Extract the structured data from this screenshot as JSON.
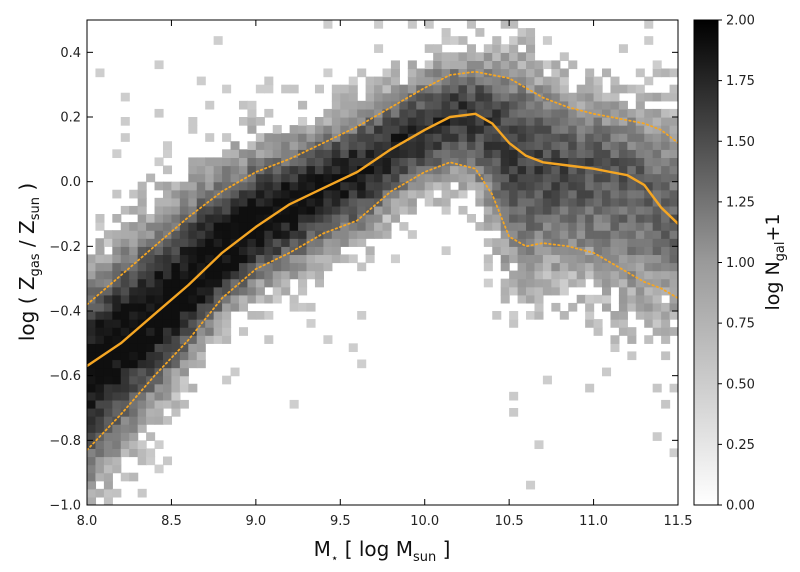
{
  "chart_data": {
    "type": "heatmap",
    "title": "",
    "xlabel": {
      "base": "M",
      "sup": "⋆",
      "rest": " [ log M",
      "sub": "sun",
      "end": " ]"
    },
    "ylabel": {
      "prefix": "log ( Z",
      "sub1": "gas",
      "mid": " / Z",
      "sub2": "sun",
      "end": " )"
    },
    "colorbar_label": {
      "prefix": "log N",
      "sub": "gal",
      "suffix": "+1"
    },
    "xlim": [
      8.0,
      11.5
    ],
    "ylim": [
      -1.0,
      0.5
    ],
    "x_ticks": [
      "8.0",
      "8.5",
      "9.0",
      "9.5",
      "10.0",
      "10.5",
      "11.0",
      "11.5"
    ],
    "y_ticks": [
      "−1.0",
      "−0.8",
      "−0.6",
      "−0.4",
      "−0.2",
      "0.0",
      "0.2",
      "0.4"
    ],
    "colorbar_ticks": [
      "0.00",
      "0.25",
      "0.50",
      "0.75",
      "1.00",
      "1.25",
      "1.50",
      "1.75",
      "2.00"
    ],
    "colorbar_range": [
      0.0,
      2.0
    ],
    "colormap": "Greys",
    "line_color": "#f5a623",
    "series": [
      {
        "style": "solid",
        "x": [
          8.0,
          8.2,
          8.4,
          8.6,
          8.8,
          9.0,
          9.2,
          9.4,
          9.6,
          9.8,
          10.0,
          10.15,
          10.3,
          10.4,
          10.5,
          10.6,
          10.7,
          10.85,
          11.0,
          11.1,
          11.2,
          11.3,
          11.4,
          11.5
        ],
        "y": [
          -0.57,
          -0.5,
          -0.41,
          -0.32,
          -0.22,
          -0.14,
          -0.07,
          -0.02,
          0.03,
          0.1,
          0.16,
          0.2,
          0.21,
          0.18,
          0.12,
          0.08,
          0.06,
          0.05,
          0.04,
          0.03,
          0.02,
          -0.01,
          -0.08,
          -0.13
        ]
      },
      {
        "style": "dotted",
        "x": [
          8.0,
          8.2,
          8.4,
          8.6,
          8.8,
          9.0,
          9.2,
          9.4,
          9.6,
          9.8,
          10.0,
          10.15,
          10.3,
          10.4,
          10.5,
          10.6,
          10.7,
          10.85,
          11.0,
          11.1,
          11.2,
          11.3,
          11.4,
          11.5
        ],
        "y": [
          -0.38,
          -0.29,
          -0.2,
          -0.11,
          -0.03,
          0.03,
          0.07,
          0.12,
          0.17,
          0.23,
          0.29,
          0.33,
          0.34,
          0.33,
          0.32,
          0.29,
          0.26,
          0.23,
          0.21,
          0.2,
          0.19,
          0.18,
          0.16,
          0.12
        ]
      },
      {
        "style": "dotted",
        "x": [
          8.0,
          8.2,
          8.4,
          8.6,
          8.8,
          9.0,
          9.2,
          9.4,
          9.6,
          9.8,
          10.0,
          10.15,
          10.3,
          10.4,
          10.5,
          10.6,
          10.7,
          10.85,
          11.0,
          11.1,
          11.2,
          11.3,
          11.4,
          11.5
        ],
        "y": [
          -0.83,
          -0.72,
          -0.6,
          -0.49,
          -0.36,
          -0.27,
          -0.22,
          -0.16,
          -0.12,
          -0.03,
          0.03,
          0.06,
          0.04,
          -0.04,
          -0.17,
          -0.2,
          -0.19,
          -0.2,
          -0.22,
          -0.25,
          -0.28,
          -0.31,
          -0.33,
          -0.36
        ]
      }
    ]
  }
}
